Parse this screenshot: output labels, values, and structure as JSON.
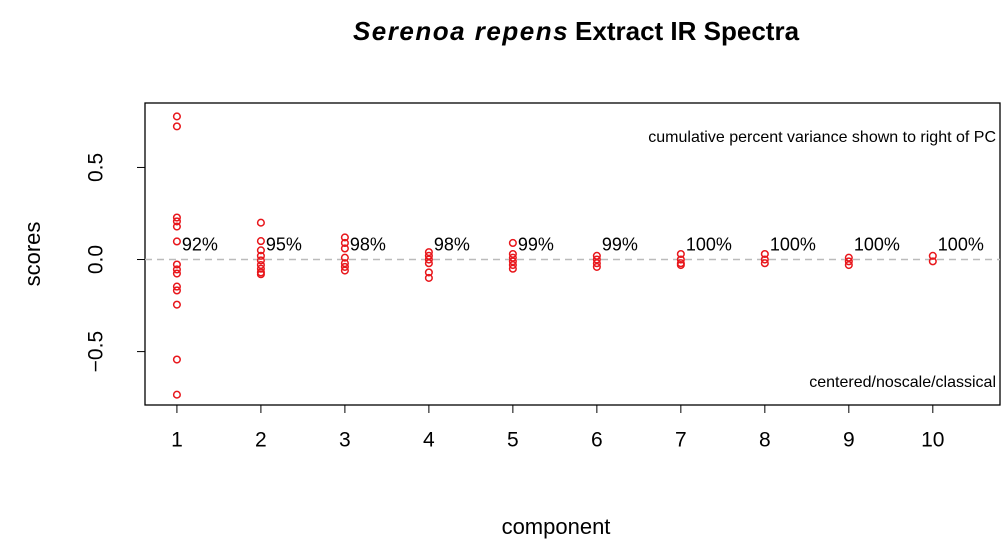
{
  "chart_data": {
    "type": "scatter",
    "title_italic": "Serenoa repens",
    "title": "Extract IR Spectra",
    "xlabel": "component",
    "ylabel": "scores",
    "annotation_top": "cumulative percent variance shown to right of PC",
    "annotation_bottom": "centered/noscale/classical",
    "pc_labels": [
      "92%",
      "95%",
      "98%",
      "98%",
      "99%",
      "99%",
      "100%",
      "100%",
      "100%",
      "100%"
    ],
    "color": "#e8161b",
    "reference_line": 0,
    "xlim": [
      0.62,
      10.8
    ],
    "ylim": [
      -0.79,
      0.85
    ],
    "xticks": [
      1,
      2,
      3,
      4,
      5,
      6,
      7,
      8,
      9,
      10
    ],
    "yticks": [
      {
        "value": -0.5,
        "label": "−0.5"
      },
      {
        "value": 0,
        "label": "0.0"
      },
      {
        "value": 0.5,
        "label": "0.5"
      }
    ],
    "x": [
      1,
      1,
      1,
      1,
      1,
      1,
      1,
      1,
      1,
      1,
      1,
      1,
      1,
      1,
      2,
      2,
      2,
      2,
      2,
      2,
      2,
      2,
      2,
      3,
      3,
      3,
      3,
      3,
      3,
      3,
      4,
      4,
      4,
      4,
      4,
      4,
      5,
      5,
      5,
      5,
      5,
      5,
      6,
      6,
      6,
      6,
      7,
      7,
      7,
      7,
      8,
      8,
      8,
      9,
      9,
      9,
      10,
      10
    ],
    "values": [
      0.777,
      0.723,
      0.228,
      0.207,
      0.179,
      0.098,
      -0.027,
      -0.054,
      -0.076,
      -0.147,
      -0.168,
      -0.245,
      -0.543,
      -0.734,
      0.2,
      0.1,
      0.05,
      0.02,
      -0.005,
      -0.03,
      -0.05,
      -0.07,
      -0.08,
      0.12,
      0.09,
      0.06,
      0.01,
      -0.02,
      -0.04,
      -0.06,
      0.04,
      0.02,
      0,
      -0.02,
      -0.07,
      -0.1,
      0.09,
      0.03,
      0.01,
      -0.01,
      -0.03,
      -0.05,
      0.02,
      0,
      -0.02,
      -0.04,
      0.03,
      0,
      -0.02,
      -0.03,
      0.03,
      0,
      -0.02,
      0.01,
      -0.01,
      -0.03,
      0.02,
      -0.01
    ]
  }
}
